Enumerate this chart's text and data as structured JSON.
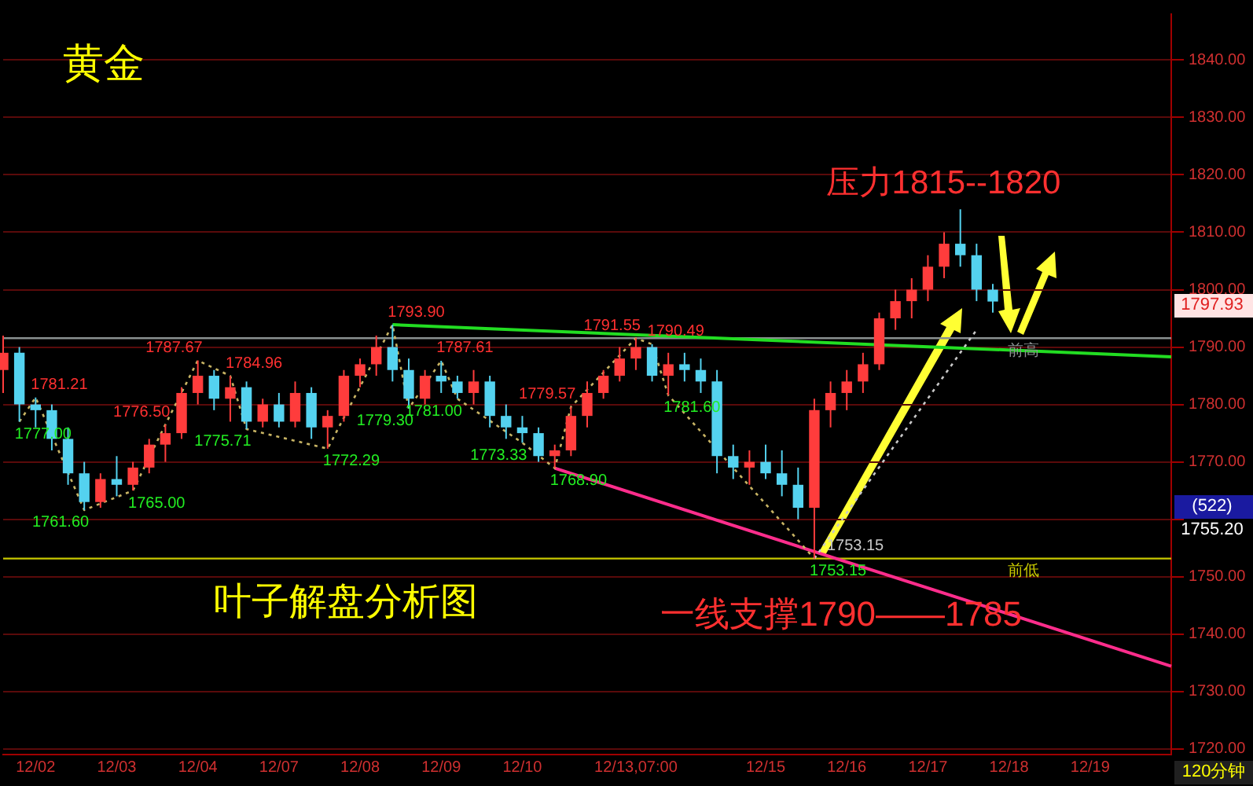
{
  "chart_data": {
    "type": "candlestick",
    "title": "黄金",
    "categories": [
      null,
      null,
      "12/02",
      null,
      null,
      null,
      null,
      "12/03",
      null,
      null,
      null,
      null,
      "12/04",
      null,
      null,
      null,
      null,
      "12/07",
      null,
      null,
      null,
      null,
      "12/08",
      null,
      null,
      null,
      null,
      "12/09",
      null,
      null,
      null,
      null,
      "12/10",
      null,
      null,
      null,
      null,
      null,
      null,
      "12/13,07:00",
      null,
      null,
      null,
      null,
      null,
      null,
      null,
      "12/15",
      null,
      null,
      null,
      null,
      "12/16",
      null,
      null,
      null,
      null,
      "12/17",
      null,
      null,
      null,
      null,
      "12/18",
      null,
      null,
      null,
      null,
      "12/19",
      null,
      null,
      null,
      null,
      null
    ],
    "ohlc": [
      [
        1786,
        1792,
        1782,
        1789
      ],
      [
        1789,
        1790,
        1777.0,
        1780
      ],
      [
        1780,
        1781.21,
        1776,
        1779
      ],
      [
        1779,
        1780,
        1772,
        1774
      ],
      [
        1774,
        1776,
        1766,
        1768
      ],
      [
        1768,
        1770,
        1761.6,
        1763
      ],
      [
        1763,
        1768,
        1762,
        1767
      ],
      [
        1767,
        1771,
        1764,
        1766
      ],
      [
        1766,
        1770,
        1765.0,
        1769
      ],
      [
        1769,
        1774,
        1768,
        1773
      ],
      [
        1773,
        1776.5,
        1770,
        1775
      ],
      [
        1775,
        1783,
        1774,
        1782
      ],
      [
        1782,
        1787.67,
        1780,
        1785
      ],
      [
        1785,
        1786,
        1779,
        1781
      ],
      [
        1781,
        1784.96,
        1777,
        1783
      ],
      [
        1783,
        1784,
        1775.71,
        1777
      ],
      [
        1777,
        1781,
        1776,
        1780
      ],
      [
        1780,
        1782,
        1776,
        1777
      ],
      [
        1777,
        1784,
        1776,
        1782
      ],
      [
        1782,
        1783,
        1774,
        1776
      ],
      [
        1776,
        1779,
        1772.29,
        1778
      ],
      [
        1778,
        1786,
        1777,
        1785
      ],
      [
        1785,
        1788,
        1783,
        1787
      ],
      [
        1787,
        1792,
        1785,
        1790
      ],
      [
        1790,
        1793.9,
        1784,
        1786
      ],
      [
        1786,
        1788,
        1779.3,
        1781
      ],
      [
        1781,
        1786,
        1780,
        1785
      ],
      [
        1785,
        1787.61,
        1782,
        1784
      ],
      [
        1784,
        1785,
        1781.0,
        1782
      ],
      [
        1782,
        1786,
        1780,
        1784
      ],
      [
        1784,
        1785,
        1776,
        1778
      ],
      [
        1778,
        1780,
        1774,
        1776
      ],
      [
        1776,
        1778,
        1773.33,
        1775
      ],
      [
        1775,
        1776,
        1770,
        1771
      ],
      [
        1771,
        1773,
        1768.9,
        1772
      ],
      [
        1772,
        1779.57,
        1771,
        1778
      ],
      [
        1778,
        1784,
        1776,
        1782
      ],
      [
        1782,
        1786,
        1781,
        1785
      ],
      [
        1785,
        1790,
        1784,
        1788
      ],
      [
        1788,
        1791.55,
        1786,
        1790
      ],
      [
        1790,
        1790.49,
        1784,
        1785
      ],
      [
        1785,
        1789,
        1781.6,
        1787
      ],
      [
        1787,
        1789,
        1784,
        1786
      ],
      [
        1786,
        1788,
        1782,
        1784
      ],
      [
        1784,
        1786,
        1768,
        1771
      ],
      [
        1771,
        1773,
        1767,
        1769
      ],
      [
        1769,
        1772,
        1766,
        1770
      ],
      [
        1770,
        1773,
        1767,
        1768
      ],
      [
        1768,
        1772,
        1764,
        1766
      ],
      [
        1766,
        1769,
        1760,
        1762
      ],
      [
        1762,
        1781,
        1753.15,
        1779
      ],
      [
        1779,
        1784,
        1776,
        1782
      ],
      [
        1782,
        1786,
        1779,
        1784
      ],
      [
        1784,
        1789,
        1782,
        1787
      ],
      [
        1787,
        1796,
        1786,
        1795
      ],
      [
        1795,
        1800,
        1793,
        1798
      ],
      [
        1798,
        1802,
        1795,
        1800
      ],
      [
        1800,
        1806,
        1798,
        1804
      ],
      [
        1804,
        1810,
        1802,
        1808
      ],
      [
        1808,
        1814,
        1804,
        1806
      ],
      [
        1806,
        1808,
        1798,
        1800
      ],
      [
        1800,
        1801,
        1796,
        1797.93
      ],
      null,
      null,
      null,
      null,
      null,
      null,
      null,
      null,
      null,
      null,
      null
    ],
    "ylim": [
      1719,
      1848
    ],
    "yticks": [
      {
        "value": 1720,
        "label": "1720.00"
      },
      {
        "value": 1730,
        "label": "1730.00"
      },
      {
        "value": 1740,
        "label": "1740.00"
      },
      {
        "value": 1750,
        "label": "1750.00"
      },
      {
        "value": 1760,
        "label": null
      },
      {
        "value": 1770,
        "label": "1770.00"
      },
      {
        "value": 1780,
        "label": "1780.00"
      },
      {
        "value": 1790,
        "label": "1790.00"
      },
      {
        "value": 1800,
        "label": "1800.00"
      },
      {
        "value": 1810,
        "label": "1810.00"
      },
      {
        "value": 1820,
        "label": "1820.00"
      },
      {
        "value": 1830,
        "label": "1830.00"
      },
      {
        "value": 1840,
        "label": "1840.00"
      }
    ],
    "grid": "y",
    "legend": false,
    "series": [
      {
        "type": "line",
        "color": "#c8b464",
        "line_style": "dotted",
        "values": [
          null,
          1777.0,
          1781.21,
          null,
          null,
          1761.6,
          null,
          null,
          1765.0,
          null,
          1776.5,
          null,
          1787.67,
          null,
          1784.96,
          1775.71,
          null,
          null,
          null,
          null,
          1772.29,
          null,
          null,
          null,
          1793.9,
          1779.3,
          null,
          1787.61,
          1781.0,
          null,
          null,
          null,
          1773.33,
          null,
          1768.9,
          1779.57,
          null,
          null,
          null,
          1791.55,
          1790.49,
          1781.6,
          null,
          null,
          null,
          null,
          null,
          null,
          null,
          null,
          1753.15,
          null,
          null,
          null,
          null,
          null,
          null,
          null,
          null,
          null,
          null,
          null,
          null,
          null,
          null,
          null,
          null,
          null,
          null,
          null,
          null,
          null,
          null
        ],
        "value_labels": [
          null,
          "1777.00",
          "1781.21",
          null,
          null,
          "1761.60",
          null,
          null,
          "1765.00",
          null,
          "1776.50",
          null,
          "1787.67",
          null,
          "1784.96",
          "1775.71",
          null,
          null,
          null,
          null,
          "1772.29",
          null,
          null,
          null,
          "1793.90",
          "1779.30",
          null,
          "1787.61",
          "1781.00",
          null,
          null,
          null,
          "1773.33",
          null,
          "1768.90",
          "1779.57",
          null,
          null,
          null,
          "1791.55",
          "1790.49",
          "1781.60",
          null,
          null,
          null,
          null,
          null,
          null,
          null,
          null,
          "1753.15",
          null,
          null,
          null,
          null,
          null,
          null,
          null,
          null,
          null,
          null,
          null,
          null,
          null,
          null,
          null,
          null,
          null,
          null,
          null,
          null,
          null,
          null
        ]
      },
      {
        "type": "line",
        "color": "#c8c8c8",
        "line_style": "dotted",
        "values": [
          null,
          null,
          null,
          null,
          null,
          null,
          null,
          null,
          null,
          null,
          null,
          null,
          null,
          null,
          null,
          null,
          null,
          null,
          null,
          null,
          null,
          null,
          null,
          null,
          null,
          null,
          null,
          null,
          null,
          null,
          null,
          null,
          null,
          null,
          null,
          null,
          null,
          null,
          null,
          null,
          null,
          null,
          null,
          null,
          null,
          null,
          null,
          null,
          null,
          null,
          1753.15,
          null,
          null,
          null,
          null,
          null,
          null,
          null,
          null,
          null,
          1793,
          null,
          null,
          null,
          null,
          null,
          null,
          null,
          null,
          null,
          null,
          null,
          null
        ],
        "value_labels": [
          null,
          null,
          null,
          null,
          null,
          null,
          null,
          null,
          null,
          null,
          null,
          null,
          null,
          null,
          null,
          null,
          null,
          null,
          null,
          null,
          null,
          null,
          null,
          null,
          null,
          null,
          null,
          null,
          null,
          null,
          null,
          null,
          null,
          null,
          null,
          null,
          null,
          null,
          null,
          null,
          null,
          null,
          null,
          null,
          null,
          null,
          null,
          null,
          null,
          null,
          "1753.15",
          null,
          null,
          null,
          null,
          null,
          null,
          null,
          null,
          null,
          null,
          null,
          null,
          null,
          null,
          null,
          null,
          null,
          null,
          null,
          null,
          null,
          null
        ]
      },
      {
        "type": "line",
        "color": "#22dd22",
        "line_style": "solid",
        "values": [
          null,
          null,
          null,
          null,
          null,
          null,
          null,
          null,
          null,
          null,
          null,
          null,
          null,
          null,
          null,
          null,
          null,
          null,
          null,
          null,
          null,
          null,
          null,
          null,
          1793.9,
          null,
          null,
          null,
          null,
          null,
          null,
          null,
          null,
          null,
          null,
          null,
          null,
          null,
          null,
          null,
          null,
          null,
          null,
          null,
          null,
          null,
          null,
          null,
          null,
          null,
          null,
          null,
          null,
          null,
          null,
          null,
          null,
          null,
          null,
          null,
          null,
          null,
          null,
          null,
          null,
          null,
          null,
          null,
          null,
          null,
          null,
          null,
          1788.3
        ]
      },
      {
        "type": "line",
        "color": "#ff2d8c",
        "line_style": "solid",
        "values": [
          null,
          null,
          null,
          null,
          null,
          null,
          null,
          null,
          null,
          null,
          null,
          null,
          null,
          null,
          null,
          null,
          null,
          null,
          null,
          null,
          null,
          null,
          null,
          null,
          null,
          null,
          null,
          null,
          null,
          null,
          null,
          null,
          null,
          null,
          1768.9,
          null,
          null,
          null,
          null,
          null,
          null,
          null,
          null,
          null,
          null,
          null,
          null,
          null,
          null,
          null,
          null,
          null,
          null,
          null,
          null,
          null,
          null,
          null,
          null,
          null,
          null,
          null,
          null,
          null,
          null,
          null,
          null,
          null,
          null,
          null,
          null,
          null,
          1734.4
        ]
      }
    ],
    "ref_lines": [
      {
        "axis": "y",
        "value": 1753.15,
        "label": "前低",
        "color": "#c8c800"
      },
      {
        "axis": "y",
        "value": 1791.55,
        "label": "前高",
        "color": "#8a9090"
      }
    ],
    "annotations": [
      "压力1815--1820",
      "叶子解盘分析图",
      "一线支撑1790——1785",
      "(522)",
      "1755.20",
      "120分钟",
      "1797.93"
    ]
  }
}
